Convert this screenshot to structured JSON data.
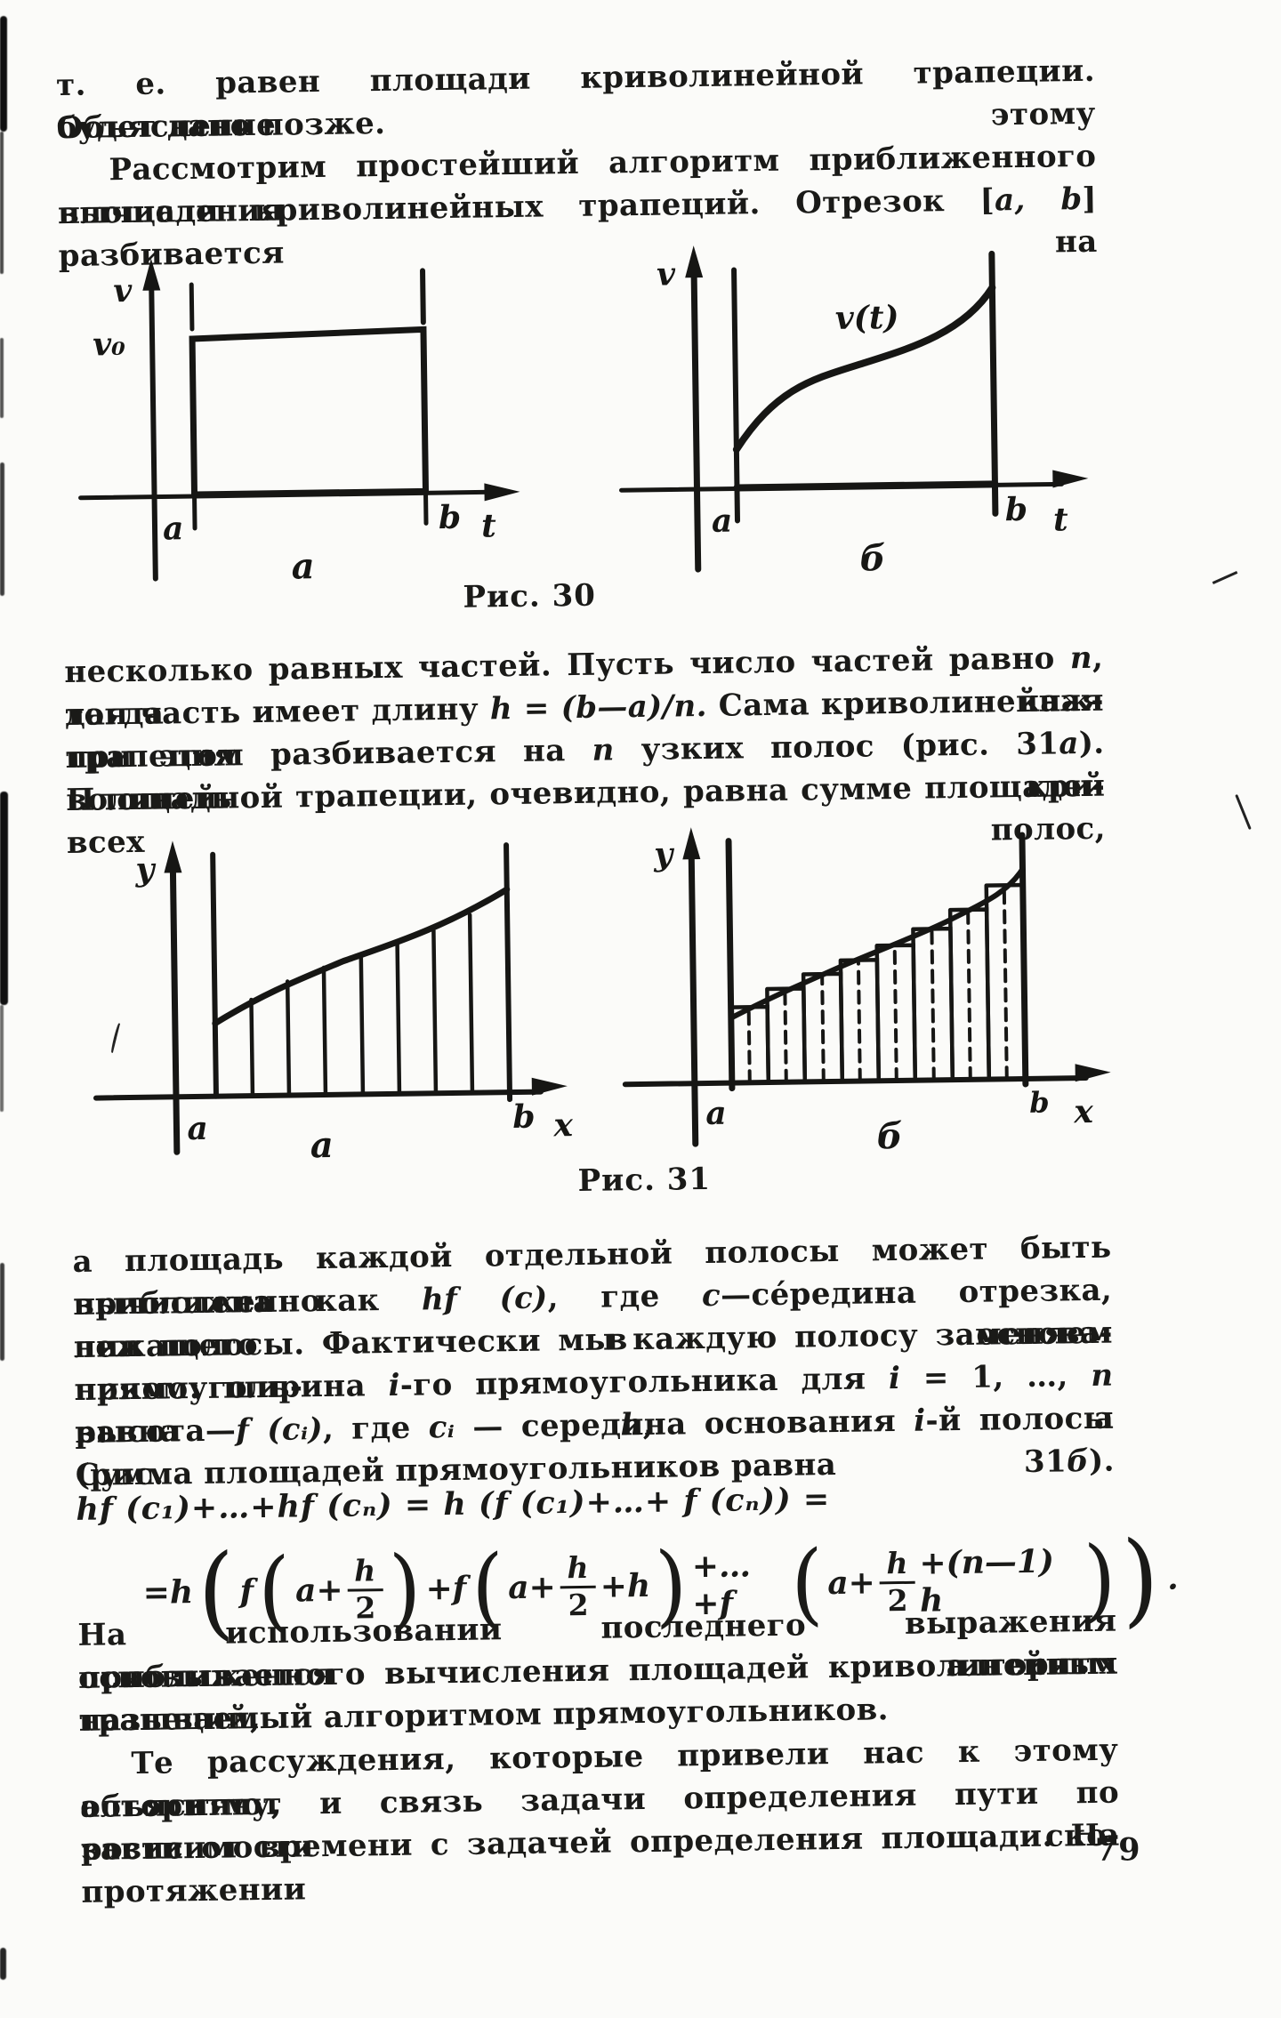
{
  "page_number": "79",
  "ink_color": "#1a1a18",
  "paper_color": "#fbfbf9",
  "paragraphs": [
    {
      "lines": [
        {
          "runs": [
            {
              "t": "т. е. равен площади криволинейной трапеции. Объяснение этому"
            }
          ]
        },
        {
          "runs": [
            {
              "t": "будет дано позже."
            }
          ]
        }
      ]
    },
    {
      "lines": [
        {
          "runs": [
            {
              "t": "Рассмотрим простейший алгоритм приближенного вычисления"
            }
          ]
        },
        {
          "runs": [
            {
              "t": "площади криволинейных трапеций. Отрезок ["
            },
            {
              "t": "a, b",
              "s": "i"
            },
            {
              "t": "] разбивается на"
            }
          ]
        }
      ]
    },
    {
      "lines": [
        {
          "runs": [
            {
              "t": "несколько равных частей. Пусть число частей равно "
            },
            {
              "t": "n",
              "s": "i"
            },
            {
              "t": ", тогда каж-"
            }
          ]
        },
        {
          "runs": [
            {
              "t": "дая часть имеет длину "
            },
            {
              "t": "h = (b—a)/n.",
              "s": "i"
            },
            {
              "t": " Сама криволинейная трапеция"
            }
          ]
        },
        {
          "runs": [
            {
              "t": "при этом разбивается на "
            },
            {
              "t": "n",
              "s": "i"
            },
            {
              "t": " узких полос (рис. 31"
            },
            {
              "t": "а",
              "s": "i"
            },
            {
              "t": "). Площадь кри-"
            }
          ]
        },
        {
          "runs": [
            {
              "t": "волинейной трапеции, очевидно, равна сумме площадей всех полос,"
            }
          ]
        }
      ]
    },
    {
      "lines": [
        {
          "runs": [
            {
              "t": "а площадь каждой отдельной полосы может быть приближенно"
            }
          ]
        },
        {
          "runs": [
            {
              "t": "вычислена как "
            },
            {
              "t": "hf (c)",
              "s": "i"
            },
            {
              "t": ", где "
            },
            {
              "t": "c",
              "s": "i"
            },
            {
              "t": "—се́редина отрезка, лежащего в основа-"
            }
          ]
        },
        {
          "runs": [
            {
              "t": "нии полосы. Фактически мы каждую полосу заменяем прямоуголь-"
            }
          ]
        },
        {
          "runs": [
            {
              "t": "ником: ширина "
            },
            {
              "t": "i",
              "s": "i"
            },
            {
              "t": "-го прямоугольника для "
            },
            {
              "t": "i",
              "s": "i"
            },
            {
              "t": " = 1, …, "
            },
            {
              "t": "n",
              "s": "i"
            },
            {
              "t": " равна "
            },
            {
              "t": "h",
              "s": "i"
            },
            {
              "t": ", а"
            }
          ]
        },
        {
          "runs": [
            {
              "t": "высота—"
            },
            {
              "t": "f (cᵢ)",
              "s": "i"
            },
            {
              "t": ", где "
            },
            {
              "t": "cᵢ",
              "s": "i"
            },
            {
              "t": " — середина основания "
            },
            {
              "t": "i",
              "s": "i"
            },
            {
              "t": "-й полосы (рис. 31"
            },
            {
              "t": "б",
              "s": "i"
            },
            {
              "t": ")."
            }
          ]
        },
        {
          "runs": [
            {
              "t": "Сумма площадей прямоугольников равна"
            }
          ]
        }
      ]
    },
    {
      "lines": [
        {
          "runs": [
            {
              "t": "На использовании последнего выражения основывается алгоритм"
            }
          ]
        },
        {
          "runs": [
            {
              "t": "приближенного вычисления площадей криволинейных трапеций,"
            }
          ]
        },
        {
          "runs": [
            {
              "t": "называемый алгоритмом прямоугольников."
            }
          ]
        }
      ]
    },
    {
      "lines": [
        {
          "runs": [
            {
              "t": "Те рассуждения, которые привели нас к этому алгоритму,"
            }
          ]
        },
        {
          "runs": [
            {
              "t": "объясняют и связь задачи определения пути по зависимости ско-"
            }
          ]
        },
        {
          "runs": [
            {
              "t": "рости от времени с задачей определения площади. На протяжении"
            }
          ]
        }
      ]
    }
  ],
  "formula": {
    "line1": "hf (c₁)+…+hf (cₙ) = h (f (c₁)+…+ f (cₙ)) =",
    "line2": {
      "lead": "=h",
      "open": "(",
      "close": ")",
      "terms": [
        {
          "pre": "f",
          "inner_pre": "a+",
          "frac": {
            "num": "h",
            "den": "2"
          },
          "inner_post": ""
        },
        {
          "pre": "+f",
          "inner_pre": "a+",
          "frac": {
            "num": "h",
            "den": "2"
          },
          "inner_post": "+h"
        },
        {
          "pre": "+…+f",
          "inner_pre": "a+",
          "frac": {
            "num": "h",
            "den": "2"
          },
          "inner_post": "+(n—1) h"
        }
      ],
      "end": "."
    }
  },
  "figures": {
    "fig30": {
      "caption": "Рис. 30",
      "a": {
        "y_label": "v",
        "y0_label": "v₀",
        "x_label": "t",
        "a_label": "a",
        "b_label": "b",
        "sub": "а"
      },
      "b": {
        "y_label": "v",
        "curve_label": "v(t)",
        "x_label": "t",
        "a_label": "a",
        "b_label": "b",
        "sub": "б"
      }
    },
    "fig31": {
      "caption": "Рис. 31",
      "a": {
        "y_label": "y",
        "x_label": "x",
        "a_label": "a",
        "b_label": "b",
        "sub": "а"
      },
      "b": {
        "y_label": "y",
        "x_label": "x",
        "a_label": "a",
        "b_label": "b",
        "sub": "б"
      }
    }
  }
}
